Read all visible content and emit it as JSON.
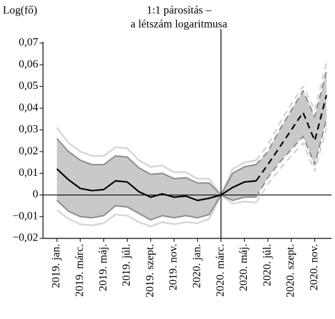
{
  "chart_data": {
    "type": "line",
    "y_label": "Log(fő)",
    "title": [
      "1:1 párosítás –",
      "a létszám logaritmusa"
    ],
    "categories": [
      "2019. jan.",
      null,
      "2019. márc.",
      null,
      "2019. máj.",
      null,
      "2019. júl.",
      null,
      "2019. szept.",
      null,
      "2019. nov.",
      null,
      "2020. jan.",
      null,
      "2020. márc.",
      null,
      "2020. máj.",
      null,
      "2020. júl.",
      null,
      "2020. szept.",
      null,
      "2020. nov.",
      null
    ],
    "vline": "2020. márc.",
    "band_fill": "#c9c9c9",
    "series": [
      {
        "color": "#000000",
        "width": 2.2,
        "dash": false,
        "values": [
          0.012,
          0.007,
          0.003,
          0.002,
          0.0025,
          0.0065,
          0.006,
          0.0015,
          -0.001,
          0.0005,
          -0.001,
          -0.0005,
          -0.0025,
          -0.0015,
          0,
          0.0035,
          0.006,
          0.0065,
          null,
          null,
          null,
          null,
          null,
          null
        ]
      },
      {
        "color": "#8c8c8c",
        "width": 2,
        "dash": false,
        "values": [
          0.026,
          0.02,
          0.016,
          0.014,
          0.014,
          0.018,
          0.0175,
          0.0125,
          0.0095,
          0.01,
          0.0075,
          0.008,
          0.0055,
          0.0055,
          0,
          0.01,
          0.013,
          0.014,
          null,
          null,
          null,
          null,
          null,
          null
        ]
      },
      {
        "color": "#8c8c8c",
        "width": 2,
        "dash": false,
        "values": [
          -0.0025,
          -0.0075,
          -0.01,
          -0.0105,
          -0.0095,
          -0.005,
          -0.0055,
          -0.0085,
          -0.0115,
          -0.0095,
          -0.0105,
          -0.0095,
          -0.0105,
          -0.009,
          0,
          -0.0025,
          -0.001,
          -0.001,
          null,
          null,
          null,
          null,
          null,
          null
        ]
      },
      {
        "color": "#d6d6d6",
        "width": 2.5,
        "dash": false,
        "values": [
          0.031,
          0.024,
          0.02,
          0.018,
          0.018,
          0.022,
          0.0215,
          0.016,
          0.013,
          0.0135,
          0.0105,
          0.0105,
          0.0075,
          0.0075,
          0,
          0.012,
          0.015,
          0.016,
          null,
          null,
          null,
          null,
          null,
          null
        ]
      },
      {
        "color": "#d6d6d6",
        "width": 2.5,
        "dash": false,
        "values": [
          -0.007,
          -0.011,
          -0.0135,
          -0.014,
          -0.013,
          -0.009,
          -0.0095,
          -0.0125,
          -0.0145,
          -0.0125,
          -0.0135,
          -0.0125,
          -0.013,
          -0.011,
          0,
          -0.004,
          -0.003,
          -0.0035,
          null,
          null,
          null,
          null,
          null,
          null
        ]
      },
      {
        "color": "#000000",
        "width": 2.2,
        "dash": true,
        "values": [
          null,
          null,
          null,
          null,
          null,
          null,
          null,
          null,
          null,
          null,
          null,
          null,
          null,
          null,
          null,
          null,
          null,
          0.0065,
          0.014,
          0.022,
          0.03,
          0.038,
          0.025,
          0.046
        ]
      },
      {
        "color": "#8c8c8c",
        "width": 2,
        "dash": true,
        "values": [
          null,
          null,
          null,
          null,
          null,
          null,
          null,
          null,
          null,
          null,
          null,
          null,
          null,
          null,
          null,
          null,
          null,
          0.014,
          0.02,
          0.03,
          0.039,
          0.048,
          0.036,
          0.057
        ]
      },
      {
        "color": "#8c8c8c",
        "width": 2,
        "dash": true,
        "values": [
          null,
          null,
          null,
          null,
          null,
          null,
          null,
          null,
          null,
          null,
          null,
          null,
          null,
          null,
          null,
          null,
          null,
          -0.001,
          0.008,
          0.015,
          0.021,
          0.027,
          0.014,
          0.035
        ]
      },
      {
        "color": "#d6d6d6",
        "width": 2.5,
        "dash": true,
        "values": [
          null,
          null,
          null,
          null,
          null,
          null,
          null,
          null,
          null,
          null,
          null,
          null,
          null,
          null,
          null,
          null,
          null,
          0.016,
          0.023,
          0.033,
          0.042,
          0.05,
          0.039,
          0.061
        ]
      },
      {
        "color": "#d6d6d6",
        "width": 2.5,
        "dash": true,
        "values": [
          null,
          null,
          null,
          null,
          null,
          null,
          null,
          null,
          null,
          null,
          null,
          null,
          null,
          null,
          null,
          null,
          null,
          -0.0035,
          0.005,
          0.012,
          0.018,
          0.024,
          0.011,
          0.031
        ]
      }
    ],
    "ylim": [
      -0.02,
      0.07
    ],
    "yticks": [
      {
        "value": -0.02,
        "label": "−0,02"
      },
      {
        "value": -0.01,
        "label": "−0,01"
      },
      0,
      {
        "value": 0.01,
        "label": "0,01"
      },
      {
        "value": 0.02,
        "label": "0,02"
      },
      {
        "value": 0.03,
        "label": "0,03"
      },
      {
        "value": 0.04,
        "label": "0,04"
      },
      {
        "value": 0.05,
        "label": "0,05"
      },
      {
        "value": 0.06,
        "label": "0,06"
      },
      {
        "value": 0.07,
        "label": "0,07"
      }
    ]
  }
}
